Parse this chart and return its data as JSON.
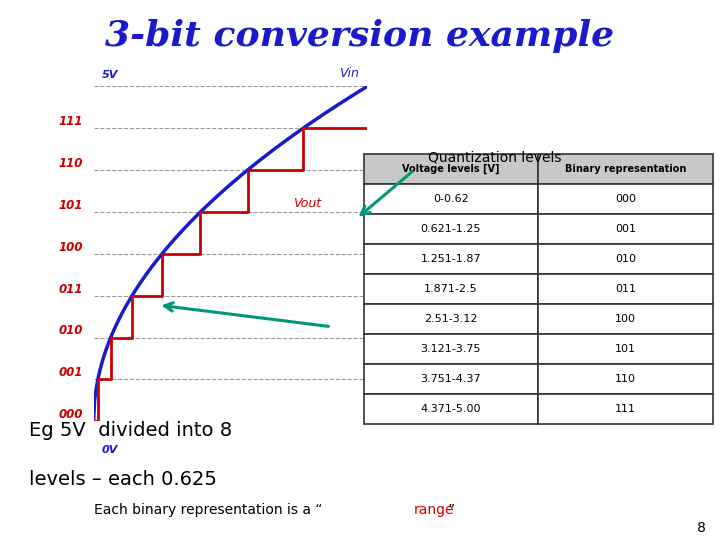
{
  "title": "3-bit conversion example",
  "title_color": "#1a1acc",
  "title_fontsize": 26,
  "background_color": "#ffffff",
  "ytick_labels": [
    "000",
    "001",
    "010",
    "011",
    "100",
    "101",
    "110",
    "111"
  ],
  "ytick_label_color": "#cc0000",
  "vin_label": "Vin",
  "vout_label": "Vout",
  "vout_label_color": "#cc0000",
  "vin_label_color": "#1a1acc",
  "fivev_label": "5V",
  "zerov_label": "0V",
  "label_color": "#1a1acc",
  "quant_text": "Quantization levels",
  "quant_text_color": "#000000",
  "arrow_color": "#009977",
  "eg_text1": "Eg 5V  divided into 8",
  "eg_text2": "levels – each 0.625",
  "eg_text_fontsize": 14,
  "bottom_text_pre": "Each binary representation is a “",
  "bottom_text_range": "range",
  "bottom_text_post": "”",
  "bottom_text_color_normal": "#000000",
  "bottom_text_color_range": "#cc0000",
  "page_number": "8",
  "table_headers": [
    "Voltage levels [V]",
    "Binary representation"
  ],
  "table_rows": [
    [
      "0-0.62",
      "000"
    ],
    [
      "0.621-1.25",
      "001"
    ],
    [
      "1.251-1.87",
      "010"
    ],
    [
      "1.871-2.5",
      "011"
    ],
    [
      "2.51-3.12",
      "100"
    ],
    [
      "3.121-3.75",
      "101"
    ],
    [
      "3.751-4.37",
      "110"
    ],
    [
      "4.371-5.00",
      "111"
    ]
  ],
  "staircase_color": "#cc0000",
  "curve_color": "#1a1acc",
  "grid_color": "#999999",
  "table_header_bg": "#c8c8c8",
  "table_border_color": "#333333",
  "n_levels": 8
}
